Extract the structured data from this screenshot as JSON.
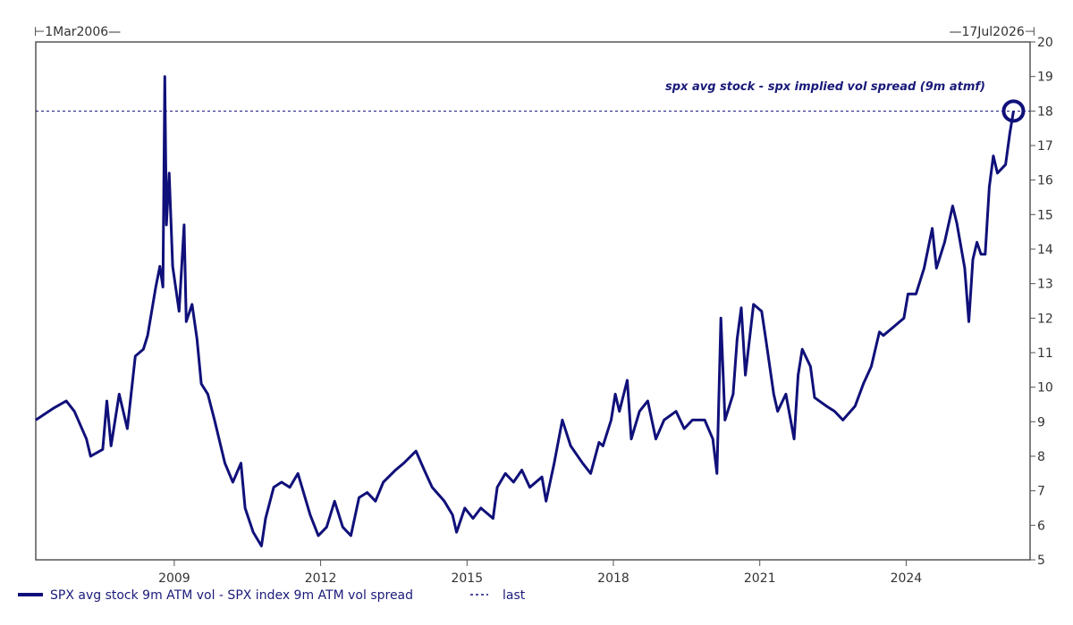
{
  "chart_data": {
    "type": "line",
    "title": "",
    "xlabel": "",
    "ylabel": "",
    "x_range_labels": {
      "start": "1Mar2006",
      "end": "17Jul2026"
    },
    "xlim": [
      "2006-03-01",
      "2026-07-17"
    ],
    "ylim": [
      5,
      20
    ],
    "y_axis_position": "right",
    "x_ticks": [
      "2009",
      "2012",
      "2015",
      "2018",
      "2021",
      "2024"
    ],
    "y_ticks": [
      5,
      6,
      7,
      8,
      9,
      10,
      11,
      12,
      13,
      14,
      15,
      16,
      17,
      18,
      19,
      20
    ],
    "grid": false,
    "legend_placement": "bottom-left",
    "annotation": "spx avg stock - spx implied vol spread (9m atmf)",
    "colors": {
      "series": "#10107a",
      "last_line": "#10107a",
      "axis": "#555555"
    },
    "last_value": 18,
    "series": [
      {
        "name": "SPX avg stock 9m ATM vol - SPX index 9m ATM vol spread",
        "points": [
          [
            "2006-03-01",
            9.05
          ],
          [
            "2006-07-15",
            9.4
          ],
          [
            "2006-10-15",
            9.6
          ],
          [
            "2006-12-15",
            9.3
          ],
          [
            "2007-03-15",
            8.5
          ],
          [
            "2007-04-15",
            8.0
          ],
          [
            "2007-07-15",
            8.2
          ],
          [
            "2007-08-15",
            9.6
          ],
          [
            "2007-09-15",
            8.3
          ],
          [
            "2007-11-15",
            9.8
          ],
          [
            "2008-01-15",
            8.8
          ],
          [
            "2008-03-15",
            10.9
          ],
          [
            "2008-05-15",
            11.1
          ],
          [
            "2008-06-15",
            11.5
          ],
          [
            "2008-08-15",
            12.9
          ],
          [
            "2008-09-15",
            13.5
          ],
          [
            "2008-10-08",
            12.9
          ],
          [
            "2008-10-22",
            19.0
          ],
          [
            "2008-11-03",
            14.7
          ],
          [
            "2008-11-24",
            16.2
          ],
          [
            "2008-12-20",
            13.5
          ],
          [
            "2009-02-06",
            12.2
          ],
          [
            "2009-03-16",
            14.7
          ],
          [
            "2009-04-01",
            11.9
          ],
          [
            "2009-05-14",
            12.4
          ],
          [
            "2009-06-20",
            11.4
          ],
          [
            "2009-07-22",
            10.1
          ],
          [
            "2009-09-09",
            9.8
          ],
          [
            "2009-10-29",
            9.05
          ],
          [
            "2010-01-15",
            7.8
          ],
          [
            "2010-03-15",
            7.25
          ],
          [
            "2010-05-15",
            7.8
          ],
          [
            "2010-06-15",
            6.5
          ],
          [
            "2010-08-15",
            5.8
          ],
          [
            "2010-10-15",
            5.4
          ],
          [
            "2010-11-15",
            6.2
          ],
          [
            "2011-01-15",
            7.1
          ],
          [
            "2011-03-15",
            7.25
          ],
          [
            "2011-05-15",
            7.1
          ],
          [
            "2011-07-15",
            7.5
          ],
          [
            "2011-10-15",
            6.3
          ],
          [
            "2011-12-15",
            5.7
          ],
          [
            "2012-02-15",
            5.95
          ],
          [
            "2012-04-15",
            6.7
          ],
          [
            "2012-06-15",
            5.95
          ],
          [
            "2012-08-15",
            5.7
          ],
          [
            "2012-10-15",
            6.8
          ],
          [
            "2012-12-15",
            6.95
          ],
          [
            "2013-02-15",
            6.7
          ],
          [
            "2013-04-15",
            7.25
          ],
          [
            "2013-07-15",
            7.6
          ],
          [
            "2013-09-15",
            7.8
          ],
          [
            "2013-12-15",
            8.15
          ],
          [
            "2014-02-15",
            7.6
          ],
          [
            "2014-04-15",
            7.1
          ],
          [
            "2014-07-15",
            6.7
          ],
          [
            "2014-09-15",
            6.3
          ],
          [
            "2014-10-15",
            5.8
          ],
          [
            "2014-12-15",
            6.5
          ],
          [
            "2015-02-15",
            6.2
          ],
          [
            "2015-04-15",
            6.5
          ],
          [
            "2015-07-15",
            6.2
          ],
          [
            "2015-08-15",
            7.1
          ],
          [
            "2015-10-15",
            7.5
          ],
          [
            "2015-12-15",
            7.25
          ],
          [
            "2016-02-15",
            7.6
          ],
          [
            "2016-04-15",
            7.1
          ],
          [
            "2016-07-15",
            7.4
          ],
          [
            "2016-08-15",
            6.7
          ],
          [
            "2016-10-15",
            7.8
          ],
          [
            "2016-12-15",
            9.05
          ],
          [
            "2017-02-15",
            8.3
          ],
          [
            "2017-05-15",
            7.8
          ],
          [
            "2017-07-15",
            7.5
          ],
          [
            "2017-09-15",
            8.4
          ],
          [
            "2017-10-15",
            8.3
          ],
          [
            "2017-12-15",
            9.05
          ],
          [
            "2018-01-15",
            9.8
          ],
          [
            "2018-02-15",
            9.3
          ],
          [
            "2018-04-15",
            10.2
          ],
          [
            "2018-05-15",
            8.5
          ],
          [
            "2018-07-15",
            9.3
          ],
          [
            "2018-09-15",
            9.6
          ],
          [
            "2018-11-15",
            8.5
          ],
          [
            "2019-01-15",
            9.05
          ],
          [
            "2019-04-15",
            9.3
          ],
          [
            "2019-06-15",
            8.8
          ],
          [
            "2019-08-15",
            9.05
          ],
          [
            "2019-11-15",
            9.05
          ],
          [
            "2020-01-15",
            8.5
          ],
          [
            "2020-02-15",
            7.5
          ],
          [
            "2020-03-15",
            12.0
          ],
          [
            "2020-04-15",
            9.05
          ],
          [
            "2020-06-15",
            9.8
          ],
          [
            "2020-07-15",
            11.4
          ],
          [
            "2020-08-15",
            12.3
          ],
          [
            "2020-09-15",
            10.35
          ],
          [
            "2020-11-15",
            12.4
          ],
          [
            "2021-01-15",
            12.2
          ],
          [
            "2021-02-15",
            11.4
          ],
          [
            "2021-04-15",
            9.8
          ],
          [
            "2021-05-15",
            9.3
          ],
          [
            "2021-07-15",
            9.8
          ],
          [
            "2021-09-15",
            8.5
          ],
          [
            "2021-10-15",
            10.35
          ],
          [
            "2021-11-15",
            11.1
          ],
          [
            "2022-01-15",
            10.6
          ],
          [
            "2022-02-15",
            9.7
          ],
          [
            "2022-05-15",
            9.45
          ],
          [
            "2022-07-15",
            9.3
          ],
          [
            "2022-09-15",
            9.05
          ],
          [
            "2022-12-15",
            9.45
          ],
          [
            "2023-02-15",
            10.1
          ],
          [
            "2023-04-15",
            10.6
          ],
          [
            "2023-06-15",
            11.6
          ],
          [
            "2023-07-15",
            11.5
          ],
          [
            "2023-10-15",
            11.8
          ],
          [
            "2023-12-15",
            12.0
          ],
          [
            "2024-01-15",
            12.7
          ],
          [
            "2024-03-15",
            12.7
          ],
          [
            "2024-05-15",
            13.45
          ],
          [
            "2024-07-15",
            14.6
          ],
          [
            "2024-08-15",
            13.45
          ],
          [
            "2024-10-15",
            14.2
          ],
          [
            "2024-12-15",
            15.25
          ],
          [
            "2025-01-15",
            14.75
          ],
          [
            "2025-03-15",
            13.45
          ],
          [
            "2025-04-15",
            11.9
          ],
          [
            "2025-05-15",
            13.7
          ],
          [
            "2025-06-15",
            14.2
          ],
          [
            "2025-07-15",
            13.85
          ],
          [
            "2025-08-15",
            13.85
          ],
          [
            "2025-09-15",
            15.8
          ],
          [
            "2025-10-15",
            16.7
          ],
          [
            "2025-11-15",
            16.2
          ],
          [
            "2026-01-15",
            16.45
          ],
          [
            "2026-02-15",
            17.35
          ],
          [
            "2026-03-15",
            18.0
          ]
        ]
      }
    ],
    "legend": [
      {
        "label": "SPX avg stock 9m ATM vol - SPX index 9m ATM vol spread",
        "style": "solid"
      },
      {
        "label": "last",
        "style": "dashed"
      }
    ]
  }
}
